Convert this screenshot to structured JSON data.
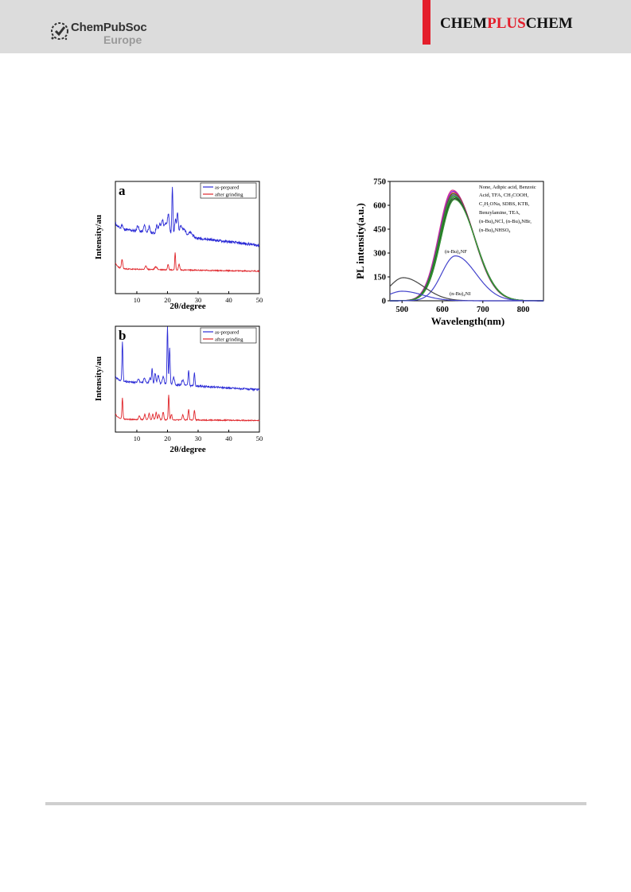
{
  "header": {
    "publisher_line1": "ChemPubSoc",
    "publisher_line2": "Europe",
    "journal_left": "CHEM",
    "journal_mid": "PLUS",
    "journal_right": "CHEM",
    "accent_color": "#e41e2b"
  },
  "chart_data": [
    {
      "type": "line",
      "panel_label": "a",
      "xlabel": "2θ/degree",
      "ylabel": "Intensity/au",
      "xlim": [
        3,
        50
      ],
      "xticks": [
        "10",
        "20",
        "30",
        "40",
        "50"
      ],
      "legend_position": "top-right",
      "series": [
        {
          "name": "as-prepared",
          "color": "#2b2bd6",
          "baseline": 0.58,
          "baseline_end": 0.43,
          "noise": 0.012,
          "seed": 11,
          "peaks": [
            [
              5.2,
              0.04,
              0.3
            ],
            [
              10.3,
              0.05,
              0.4
            ],
            [
              12.5,
              0.06,
              0.4
            ],
            [
              14.0,
              0.05,
              0.4
            ],
            [
              16.5,
              0.07,
              0.4
            ],
            [
              17.5,
              0.09,
              0.5
            ],
            [
              18.4,
              0.12,
              0.4
            ],
            [
              19.3,
              0.1,
              0.5
            ],
            [
              20.3,
              0.18,
              0.5
            ],
            [
              21.6,
              0.42,
              0.25
            ],
            [
              22.6,
              0.14,
              0.4
            ],
            [
              23.3,
              0.2,
              0.3
            ],
            [
              24.3,
              0.09,
              0.6
            ],
            [
              25.5,
              0.06,
              0.8
            ],
            [
              27.5,
              0.04,
              1.0
            ]
          ]
        },
        {
          "name": "after grinding",
          "color": "#e0262b",
          "baseline": 0.22,
          "baseline_end": 0.2,
          "noise": 0.005,
          "seed": 23,
          "peaks": [
            [
              5.2,
              0.08,
              0.3
            ],
            [
              13.0,
              0.03,
              0.4
            ],
            [
              16.2,
              0.025,
              0.5
            ],
            [
              20.2,
              0.05,
              0.3
            ],
            [
              22.5,
              0.16,
              0.2
            ],
            [
              23.8,
              0.05,
              0.3
            ]
          ]
        }
      ]
    },
    {
      "type": "line",
      "panel_label": "b",
      "xlabel": "2θ/degree",
      "ylabel": "Intensity/au",
      "xlim": [
        3,
        50
      ],
      "xticks": [
        "10",
        "20",
        "30",
        "40",
        "50"
      ],
      "legend_position": "top-right",
      "series": [
        {
          "name": "as-prepared",
          "color": "#2b2bd6",
          "baseline": 0.48,
          "baseline_end": 0.4,
          "noise": 0.008,
          "seed": 31,
          "peaks": [
            [
              5.3,
              0.38,
              0.22
            ],
            [
              10.5,
              0.04,
              0.4
            ],
            [
              12.5,
              0.05,
              0.4
            ],
            [
              14.3,
              0.05,
              0.4
            ],
            [
              15.0,
              0.14,
              0.25
            ],
            [
              16.0,
              0.1,
              0.3
            ],
            [
              17.0,
              0.08,
              0.4
            ],
            [
              18.6,
              0.07,
              0.4
            ],
            [
              20.0,
              0.55,
              0.22
            ],
            [
              20.7,
              0.35,
              0.25
            ],
            [
              22.0,
              0.07,
              0.4
            ],
            [
              25.0,
              0.05,
              0.5
            ],
            [
              26.9,
              0.14,
              0.25
            ],
            [
              28.8,
              0.12,
              0.25
            ]
          ]
        },
        {
          "name": "after grinding",
          "color": "#e0262b",
          "baseline": 0.12,
          "baseline_end": 0.11,
          "noise": 0.005,
          "seed": 47,
          "peaks": [
            [
              5.3,
              0.2,
              0.22
            ],
            [
              10.8,
              0.04,
              0.3
            ],
            [
              12.6,
              0.05,
              0.3
            ],
            [
              14.0,
              0.06,
              0.3
            ],
            [
              15.2,
              0.05,
              0.3
            ],
            [
              16.3,
              0.07,
              0.3
            ],
            [
              17.2,
              0.05,
              0.3
            ],
            [
              18.6,
              0.07,
              0.3
            ],
            [
              20.4,
              0.24,
              0.22
            ],
            [
              21.3,
              0.05,
              0.3
            ],
            [
              25.0,
              0.05,
              0.3
            ],
            [
              26.9,
              0.1,
              0.25
            ],
            [
              28.8,
              0.09,
              0.25
            ]
          ]
        }
      ]
    },
    {
      "type": "line",
      "xlabel": "Wavelength(nm)",
      "ylabel": "PL intensity(a.u.)",
      "xlim": [
        470,
        850
      ],
      "ylim": [
        0,
        750
      ],
      "xticks": [
        500,
        600,
        700,
        800
      ],
      "yticks": [
        0,
        150,
        300,
        450,
        600,
        750
      ],
      "annotation_group": [
        "None, Adipic acid, Benzoic",
        "Acid, TFA, CH₃COOH,",
        "C₂H₅ONa, SDBS, KTB,",
        "Benzylamine, TEA,",
        "(n-Bu)₄NCl, (n-Bu)₄NBr,",
        "(n-Bu)₄NHSO₄"
      ],
      "annotation_nf": "(n-Bu)₄NF",
      "annotation_ni": "(n-Bu)₄NI",
      "series": [
        {
          "peak": 625,
          "height": 695,
          "color": "#e23a8c"
        },
        {
          "peak": 626,
          "height": 688,
          "color": "#8a2be2"
        },
        {
          "peak": 627,
          "height": 680,
          "color": "#d12b2b"
        },
        {
          "peak": 627,
          "height": 672,
          "color": "#2a7a2a"
        },
        {
          "peak": 628,
          "height": 665,
          "color": "#7b3fa0"
        },
        {
          "peak": 628,
          "height": 658,
          "color": "#22aa22"
        },
        {
          "peak": 629,
          "height": 650,
          "color": "#1a6b1a"
        },
        {
          "peak": 630,
          "height": 642,
          "color": "#333333"
        },
        {
          "peak": 630,
          "height": 636,
          "color": "#3b9b3b"
        },
        {
          "peak": 632,
          "height": 282,
          "color": "#4444cc"
        },
        {
          "peak": 503,
          "height": 145,
          "color": "#444444"
        },
        {
          "peak": 500,
          "height": 60,
          "color": "#4444cc"
        }
      ]
    }
  ]
}
